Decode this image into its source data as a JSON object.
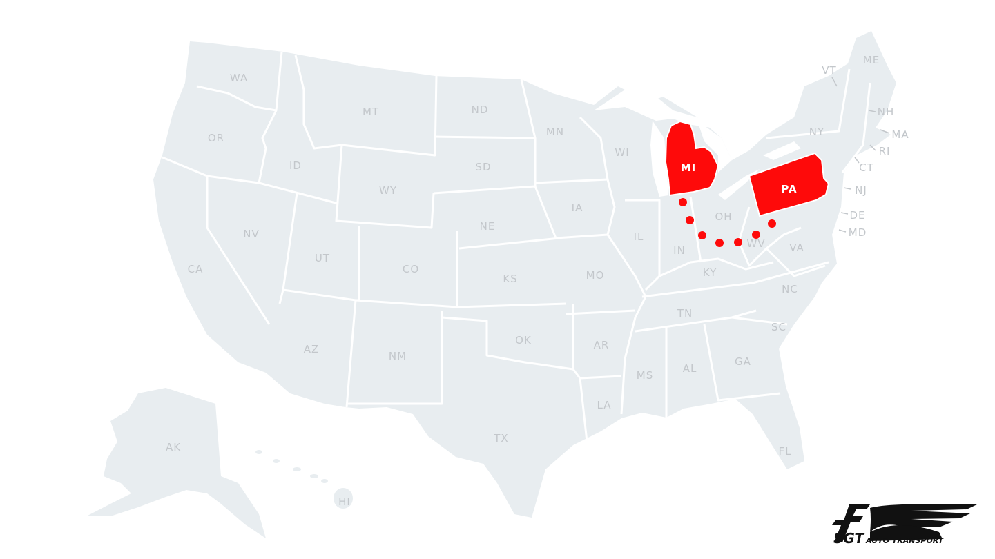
{
  "map": {
    "land_color": "#e8edf0",
    "border_color": "#ffffff",
    "label_color": "#c3c7cb",
    "highlight_color": "#fe0a0a",
    "states": [
      "WA",
      "OR",
      "CA",
      "ID",
      "NV",
      "MT",
      "WY",
      "UT",
      "AZ",
      "CO",
      "NM",
      "ND",
      "SD",
      "NE",
      "KS",
      "OK",
      "TX",
      "MN",
      "IA",
      "MO",
      "AR",
      "LA",
      "WI",
      "IL",
      "MS",
      "MI",
      "IN",
      "KY",
      "TN",
      "AL",
      "OH",
      "WV",
      "VA",
      "NC",
      "SC",
      "GA",
      "FL",
      "PA",
      "NY",
      "VT",
      "ME",
      "NH",
      "MA",
      "RI",
      "CT",
      "NJ",
      "DE",
      "MD",
      "AK",
      "HI"
    ],
    "highlighted_states": [
      "MI",
      "PA"
    ],
    "route": {
      "from": "MI",
      "to": "PA",
      "style": "dotted"
    }
  },
  "logo": {
    "brand": "SGT",
    "tagline": "AUTO TRANSPORT"
  }
}
